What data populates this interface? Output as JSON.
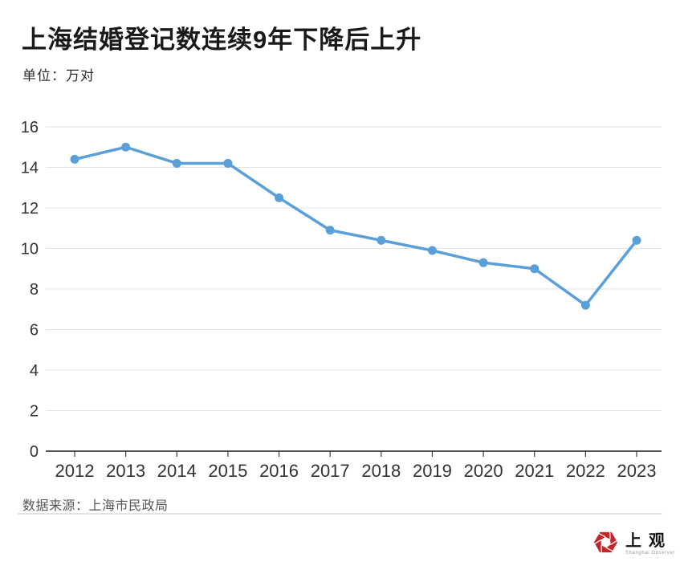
{
  "header": {
    "title": "上海结婚登记数连续9年下降后上升",
    "unit_label": "单位：万对"
  },
  "chart_data": {
    "type": "line",
    "title": "上海结婚登记数连续9年下降后上升",
    "unit": "万对",
    "x": [
      "2012",
      "2013",
      "2014",
      "2015",
      "2016",
      "2017",
      "2018",
      "2019",
      "2020",
      "2021",
      "2022",
      "2023"
    ],
    "values": [
      14.4,
      15.0,
      14.2,
      14.2,
      12.5,
      10.9,
      10.4,
      9.9,
      9.3,
      9.0,
      7.2,
      10.4
    ],
    "ylim": [
      0,
      16
    ],
    "ytick_step": 2,
    "yticks": [
      0,
      2,
      4,
      6,
      8,
      10,
      12,
      14,
      16
    ],
    "grid": true,
    "legend": "none",
    "line_color": "#5b9fd9",
    "grid_color": "#e2e2e2",
    "axis_color": "#3c3c3c",
    "label_color": "#333333"
  },
  "footer": {
    "source": "数据来源：上海市民政局"
  },
  "logo": {
    "name_cn": "上观",
    "name_en": "Shanghai Observer",
    "icon": "aperture-hexagon-icon",
    "icon_color": "#c0272d"
  }
}
